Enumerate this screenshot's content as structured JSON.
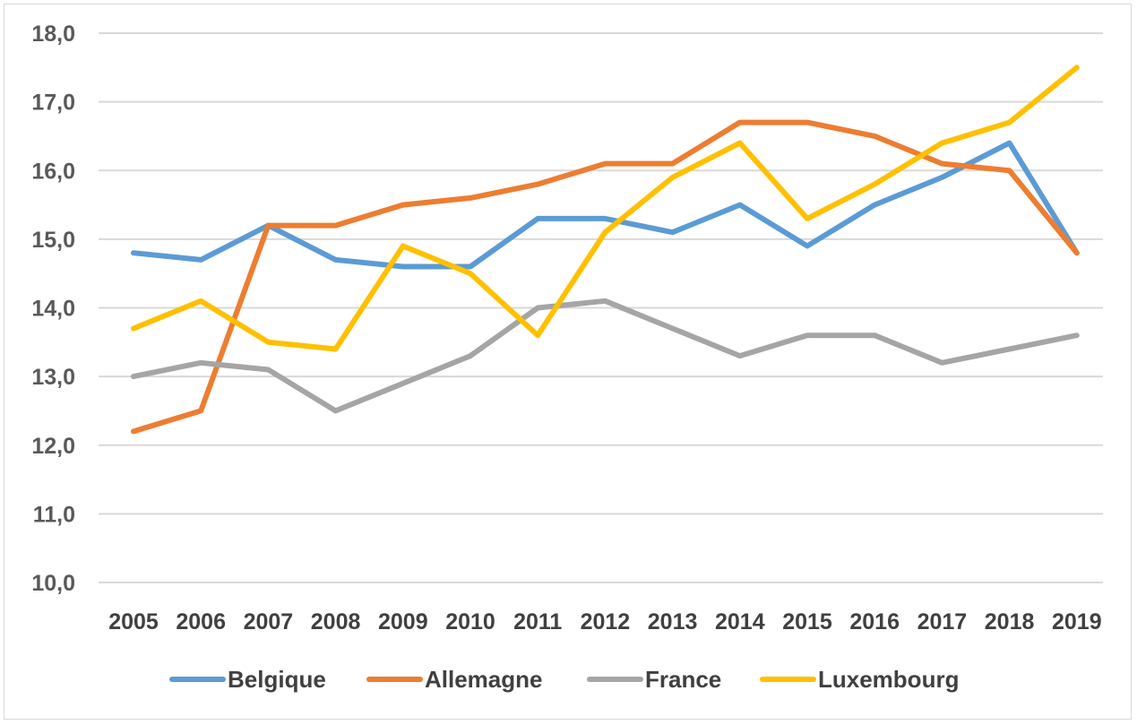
{
  "chart_data": {
    "type": "line",
    "title": "",
    "xlabel": "",
    "ylabel": "",
    "ylim": [
      10,
      18
    ],
    "y_ticks": [
      "10,0",
      "11,0",
      "12,0",
      "13,0",
      "14,0",
      "15,0",
      "16,0",
      "17,0",
      "18,0"
    ],
    "categories": [
      "2005",
      "2006",
      "2007",
      "2008",
      "2009",
      "2010",
      "2011",
      "2012",
      "2013",
      "2014",
      "2015",
      "2016",
      "2017",
      "2018",
      "2019"
    ],
    "grid": true,
    "legend_position": "bottom",
    "series": [
      {
        "name": "Belgique",
        "color": "#5B9BD5",
        "values": [
          14.8,
          14.7,
          15.2,
          14.7,
          14.6,
          14.6,
          15.3,
          15.3,
          15.1,
          15.5,
          14.9,
          15.5,
          15.9,
          16.4,
          14.8
        ]
      },
      {
        "name": "Allemagne",
        "color": "#ED7D31",
        "values": [
          12.2,
          12.5,
          15.2,
          15.2,
          15.5,
          15.6,
          15.8,
          16.1,
          16.1,
          16.7,
          16.7,
          16.5,
          16.1,
          16.0,
          14.8
        ]
      },
      {
        "name": "France",
        "color": "#A5A5A5",
        "values": [
          13.0,
          13.2,
          13.1,
          12.5,
          12.9,
          13.3,
          14.0,
          14.1,
          13.7,
          13.3,
          13.6,
          13.6,
          13.2,
          13.4,
          13.6
        ]
      },
      {
        "name": "Luxembourg",
        "color": "#FFC000",
        "values": [
          13.7,
          14.1,
          13.5,
          13.4,
          14.9,
          14.5,
          13.6,
          15.1,
          15.9,
          16.4,
          15.3,
          15.8,
          16.4,
          16.7,
          17.5
        ]
      }
    ]
  }
}
